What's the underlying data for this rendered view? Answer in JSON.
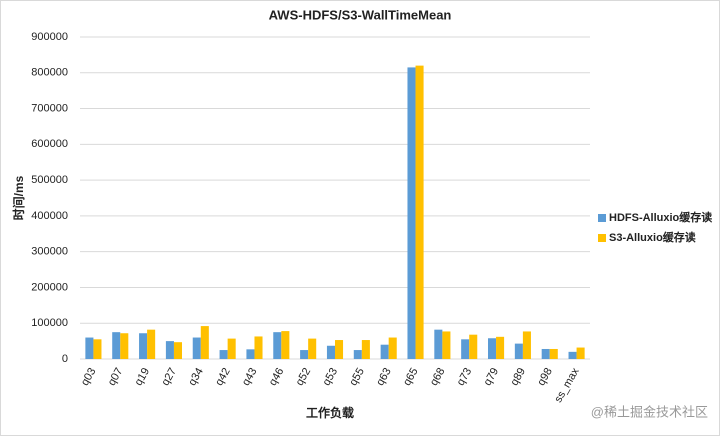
{
  "chart_data": {
    "type": "bar",
    "title": "AWS-HDFS/S3-WallTimeMean",
    "x_label": "工作负载",
    "y_label": "时间/ms",
    "categories": [
      "q03",
      "q07",
      "q19",
      "q27",
      "q34",
      "q42",
      "q43",
      "q46",
      "q52",
      "q53",
      "q55",
      "q63",
      "q65",
      "q68",
      "q73",
      "q79",
      "q89",
      "q98",
      "ss_max"
    ],
    "series": [
      {
        "name": "HDFS-Alluxio缓存读",
        "color": "#5b9bd5",
        "values": [
          60000,
          75000,
          72000,
          50000,
          60000,
          25000,
          27000,
          75000,
          25000,
          37000,
          25000,
          40000,
          815000,
          82000,
          55000,
          58000,
          43000,
          28000,
          20000
        ]
      },
      {
        "name": "S3-Alluxio缓存读",
        "color": "#ffc000",
        "values": [
          55000,
          72000,
          82000,
          47000,
          92000,
          57000,
          63000,
          78000,
          57000,
          53000,
          53000,
          60000,
          820000,
          77000,
          68000,
          62000,
          77000,
          28000,
          32000
        ]
      }
    ],
    "ylim": [
      0,
      900000
    ],
    "yticks": [
      0,
      100000,
      200000,
      300000,
      400000,
      500000,
      600000,
      700000,
      800000,
      900000
    ],
    "grid": true,
    "legend": "right",
    "watermark": "@稀土掘金技术社区"
  }
}
